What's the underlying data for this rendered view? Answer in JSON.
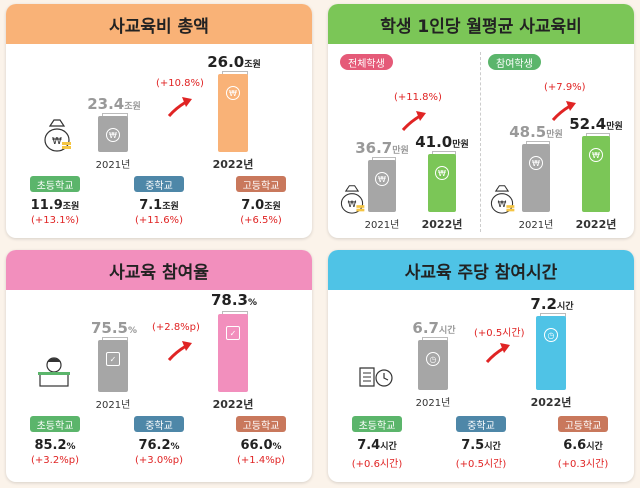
{
  "colors": {
    "orange": "#f9b277",
    "green": "#7bc657",
    "pink": "#f28fbd",
    "blue": "#4fc3e6",
    "grey": "#a6a6a6",
    "badge_elem": "#5bb56b",
    "badge_mid": "#4e87a8",
    "badge_high": "#c9785c",
    "red": "#e02424"
  },
  "p1": {
    "title": "사교육비 총액",
    "y2021": {
      "year": "2021년",
      "value": "23.4",
      "unit": "조원"
    },
    "y2022": {
      "year": "2022년",
      "value": "26.0",
      "unit": "조원"
    },
    "change": "(+10.8%)",
    "schools": [
      {
        "label": "초등학교",
        "value": "11.9",
        "unit": "조원",
        "change": "(+13.1%)"
      },
      {
        "label": "중학교",
        "value": "7.1",
        "unit": "조원",
        "change": "(+11.6%)"
      },
      {
        "label": "고등학교",
        "value": "7.0",
        "unit": "조원",
        "change": "(+6.5%)"
      }
    ]
  },
  "p2": {
    "title": "학생 1인당 월평균 사교육비",
    "left": {
      "label": "전체학생",
      "change": "(+11.8%)",
      "y2021": {
        "year": "2021년",
        "value": "36.7",
        "unit": "만원"
      },
      "y2022": {
        "year": "2022년",
        "value": "41.0",
        "unit": "만원"
      }
    },
    "right": {
      "label": "참여학생",
      "change": "(+7.9%)",
      "y2021": {
        "year": "2021년",
        "value": "48.5",
        "unit": "만원"
      },
      "y2022": {
        "year": "2022년",
        "value": "52.4",
        "unit": "만원"
      }
    }
  },
  "p3": {
    "title": "사교육 참여율",
    "y2021": {
      "year": "2021년",
      "value": "75.5",
      "unit": "%"
    },
    "y2022": {
      "year": "2022년",
      "value": "78.3",
      "unit": "%"
    },
    "change": "(+2.8%p)",
    "schools": [
      {
        "label": "초등학교",
        "value": "85.2",
        "unit": "%",
        "change": "(+3.2%p)"
      },
      {
        "label": "중학교",
        "value": "76.2",
        "unit": "%",
        "change": "(+3.0%p)"
      },
      {
        "label": "고등학교",
        "value": "66.0",
        "unit": "%",
        "change": "(+1.4%p)"
      }
    ]
  },
  "p4": {
    "title": "사교육 주당 참여시간",
    "y2021": {
      "year": "2021년",
      "value": "6.7",
      "unit": "시간"
    },
    "y2022": {
      "year": "2022년",
      "value": "7.2",
      "unit": "시간"
    },
    "change": "(+0.5시간)",
    "schools": [
      {
        "label": "초등학교",
        "value": "7.4",
        "unit": "시간",
        "change": "(+0.6시간)"
      },
      {
        "label": "중학교",
        "value": "7.5",
        "unit": "시간",
        "change": "(+0.5시간)"
      },
      {
        "label": "고등학교",
        "value": "6.6",
        "unit": "시간",
        "change": "(+0.3시간)"
      }
    ]
  },
  "icons": {
    "won": "₩",
    "check": "✓",
    "clock": "◷"
  }
}
